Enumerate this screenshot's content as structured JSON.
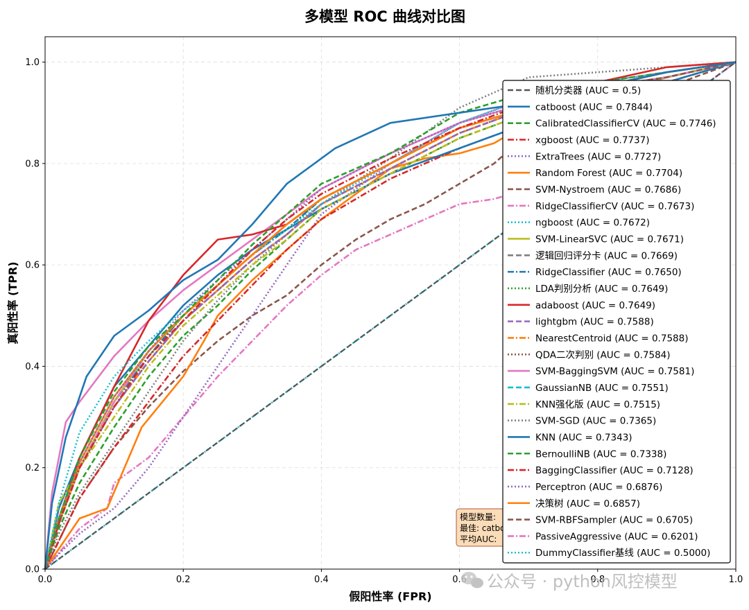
{
  "chart_data": {
    "type": "line",
    "title": "多模型 ROC 曲线对比图",
    "xlabel": "假阳性率 (FPR)",
    "ylabel": "真阳性率 (TPR)",
    "xlim": [
      0,
      1
    ],
    "ylim": [
      0,
      1.05
    ],
    "xticks": [
      "0.0",
      "0.2",
      "0.4",
      "0.6",
      "0.8",
      "1.0"
    ],
    "yticks": [
      "0.0",
      "0.2",
      "0.4",
      "0.6",
      "0.8",
      "1.0"
    ],
    "grid": true,
    "legend_position": "right",
    "series": [
      {
        "name": "随机分类器 (AUC = 0.5)",
        "color": "#555555",
        "dash": "dashed",
        "x": [
          0,
          1
        ],
        "y": [
          0,
          1
        ]
      },
      {
        "name": "catboost (AUC = 0.7844)",
        "color": "#1f77b4",
        "dash": "solid",
        "x": [
          0,
          0.01,
          0.03,
          0.06,
          0.1,
          0.15,
          0.2,
          0.25,
          0.3,
          0.35,
          0.42,
          0.5,
          0.6,
          0.7,
          0.8,
          0.9,
          1
        ],
        "y": [
          0,
          0.13,
          0.26,
          0.38,
          0.46,
          0.51,
          0.57,
          0.61,
          0.68,
          0.76,
          0.83,
          0.88,
          0.9,
          0.92,
          0.95,
          0.98,
          1
        ]
      },
      {
        "name": "CalibratedClassifierCV (AUC = 0.7746)",
        "color": "#2ca02c",
        "dash": "dashed",
        "x": [
          0,
          0.02,
          0.05,
          0.1,
          0.15,
          0.2,
          0.25,
          0.3,
          0.35,
          0.4,
          0.5,
          0.6,
          0.7,
          0.8,
          0.9,
          1
        ],
        "y": [
          0,
          0.1,
          0.22,
          0.35,
          0.44,
          0.5,
          0.57,
          0.64,
          0.7,
          0.76,
          0.82,
          0.9,
          0.94,
          0.96,
          0.98,
          1
        ]
      },
      {
        "name": "xgboost (AUC = 0.7737)",
        "color": "#d62728",
        "dash": "dashdot",
        "x": [
          0,
          0.02,
          0.05,
          0.1,
          0.15,
          0.2,
          0.25,
          0.3,
          0.35,
          0.4,
          0.5,
          0.6,
          0.7,
          0.8,
          0.9,
          1
        ],
        "y": [
          0,
          0.09,
          0.2,
          0.32,
          0.42,
          0.49,
          0.56,
          0.63,
          0.69,
          0.74,
          0.81,
          0.87,
          0.92,
          0.95,
          0.98,
          1
        ]
      },
      {
        "name": "ExtraTrees (AUC = 0.7727)",
        "color": "#9467bd",
        "dash": "dotted",
        "x": [
          0,
          0.02,
          0.05,
          0.1,
          0.15,
          0.2,
          0.25,
          0.3,
          0.35,
          0.4,
          0.5,
          0.6,
          0.7,
          0.8,
          0.9,
          1
        ],
        "y": [
          0,
          0.1,
          0.21,
          0.34,
          0.43,
          0.51,
          0.57,
          0.63,
          0.69,
          0.75,
          0.82,
          0.88,
          0.92,
          0.95,
          0.98,
          1
        ]
      },
      {
        "name": "Random Forest (AUC = 0.7704)",
        "color": "#ff7f0e",
        "dash": "solid",
        "x": [
          0,
          0.02,
          0.05,
          0.1,
          0.15,
          0.2,
          0.25,
          0.3,
          0.35,
          0.4,
          0.5,
          0.6,
          0.7,
          0.8,
          0.9,
          1
        ],
        "y": [
          0,
          0.1,
          0.21,
          0.34,
          0.43,
          0.5,
          0.56,
          0.62,
          0.68,
          0.73,
          0.8,
          0.87,
          0.91,
          0.95,
          0.98,
          1
        ]
      },
      {
        "name": "SVM-Nystroem (AUC = 0.7686)",
        "color": "#8c564b",
        "dash": "dashed",
        "x": [
          0,
          0.02,
          0.05,
          0.1,
          0.15,
          0.2,
          0.25,
          0.3,
          0.35,
          0.4,
          0.5,
          0.6,
          0.7,
          0.8,
          0.9,
          1
        ],
        "y": [
          0,
          0.09,
          0.21,
          0.34,
          0.43,
          0.5,
          0.56,
          0.62,
          0.68,
          0.73,
          0.8,
          0.87,
          0.91,
          0.95,
          0.97,
          1
        ]
      },
      {
        "name": "RidgeClassifierCV (AUC = 0.7673)",
        "color": "#e377c2",
        "dash": "dashdot",
        "x": [
          0,
          0.02,
          0.05,
          0.1,
          0.15,
          0.2,
          0.25,
          0.3,
          0.35,
          0.4,
          0.5,
          0.6,
          0.7,
          0.8,
          0.9,
          1
        ],
        "y": [
          0,
          0.09,
          0.2,
          0.33,
          0.43,
          0.5,
          0.56,
          0.62,
          0.68,
          0.73,
          0.8,
          0.87,
          0.91,
          0.95,
          0.97,
          1
        ]
      },
      {
        "name": "ngboost (AUC = 0.7672)",
        "color": "#17becf",
        "dash": "dotted",
        "x": [
          0,
          0.02,
          0.05,
          0.1,
          0.15,
          0.2,
          0.25,
          0.3,
          0.35,
          0.4,
          0.5,
          0.6,
          0.7,
          0.8,
          0.9,
          1
        ],
        "y": [
          0,
          0.13,
          0.27,
          0.38,
          0.45,
          0.51,
          0.56,
          0.62,
          0.67,
          0.72,
          0.8,
          0.88,
          0.93,
          0.96,
          0.98,
          1
        ]
      },
      {
        "name": "SVM-LinearSVC (AUC = 0.7671)",
        "color": "#bcbd22",
        "dash": "solid",
        "x": [
          0,
          0.02,
          0.05,
          0.1,
          0.15,
          0.2,
          0.25,
          0.3,
          0.35,
          0.4,
          0.5,
          0.6,
          0.7,
          0.8,
          0.9,
          1
        ],
        "y": [
          0,
          0.09,
          0.2,
          0.33,
          0.43,
          0.5,
          0.56,
          0.62,
          0.68,
          0.73,
          0.8,
          0.87,
          0.91,
          0.95,
          0.97,
          1
        ]
      },
      {
        "name": "逻辑回归评分卡 (AUC = 0.7669)",
        "color": "#7f7f7f",
        "dash": "dashed",
        "x": [
          0,
          0.02,
          0.05,
          0.1,
          0.15,
          0.2,
          0.25,
          0.3,
          0.35,
          0.4,
          0.5,
          0.6,
          0.7,
          0.8,
          0.9,
          1
        ],
        "y": [
          0,
          0.09,
          0.2,
          0.33,
          0.43,
          0.5,
          0.56,
          0.62,
          0.68,
          0.73,
          0.8,
          0.87,
          0.91,
          0.95,
          0.97,
          1
        ]
      },
      {
        "name": "RidgeClassifier (AUC = 0.7650)",
        "color": "#1f77b4",
        "dash": "dashdot",
        "x": [
          0,
          0.02,
          0.05,
          0.1,
          0.15,
          0.2,
          0.25,
          0.3,
          0.35,
          0.4,
          0.5,
          0.6,
          0.7,
          0.8,
          0.9,
          1
        ],
        "y": [
          0,
          0.09,
          0.2,
          0.33,
          0.42,
          0.5,
          0.56,
          0.62,
          0.67,
          0.73,
          0.8,
          0.87,
          0.91,
          0.95,
          0.97,
          1
        ]
      },
      {
        "name": "LDA判别分析 (AUC = 0.7649)",
        "color": "#2ca02c",
        "dash": "dotted",
        "x": [
          0,
          0.02,
          0.05,
          0.1,
          0.15,
          0.2,
          0.25,
          0.3,
          0.35,
          0.4,
          0.5,
          0.6,
          0.7,
          0.8,
          0.9,
          1
        ],
        "y": [
          0,
          0.09,
          0.2,
          0.33,
          0.42,
          0.5,
          0.56,
          0.62,
          0.67,
          0.73,
          0.8,
          0.87,
          0.91,
          0.95,
          0.97,
          1
        ]
      },
      {
        "name": "adaboost (AUC = 0.7649)",
        "color": "#d62728",
        "dash": "solid",
        "x": [
          0,
          0.02,
          0.05,
          0.1,
          0.15,
          0.2,
          0.25,
          0.3,
          0.35,
          0.4,
          0.5,
          0.6,
          0.7,
          0.8,
          0.9,
          1
        ],
        "y": [
          0,
          0.1,
          0.22,
          0.36,
          0.49,
          0.58,
          0.65,
          0.66,
          0.68,
          0.73,
          0.8,
          0.87,
          0.91,
          0.96,
          0.99,
          1
        ]
      },
      {
        "name": "lightgbm (AUC = 0.7588)",
        "color": "#9467bd",
        "dash": "dashed",
        "x": [
          0,
          0.02,
          0.05,
          0.1,
          0.15,
          0.2,
          0.25,
          0.3,
          0.35,
          0.4,
          0.5,
          0.6,
          0.7,
          0.8,
          0.9,
          1
        ],
        "y": [
          0,
          0.09,
          0.2,
          0.32,
          0.41,
          0.49,
          0.55,
          0.61,
          0.66,
          0.72,
          0.79,
          0.86,
          0.91,
          0.95,
          0.97,
          1
        ]
      },
      {
        "name": "NearestCentroid (AUC = 0.7588)",
        "color": "#ff7f0e",
        "dash": "dashdot",
        "x": [
          0,
          0.02,
          0.05,
          0.1,
          0.15,
          0.2,
          0.25,
          0.3,
          0.35,
          0.4,
          0.5,
          0.6,
          0.7,
          0.8,
          0.9,
          1
        ],
        "y": [
          0,
          0.09,
          0.2,
          0.32,
          0.41,
          0.49,
          0.55,
          0.61,
          0.66,
          0.72,
          0.79,
          0.86,
          0.91,
          0.95,
          0.97,
          1
        ]
      },
      {
        "name": "QDA二次判别 (AUC = 0.7584)",
        "color": "#8c564b",
        "dash": "dotted",
        "x": [
          0,
          0.02,
          0.05,
          0.1,
          0.15,
          0.2,
          0.25,
          0.3,
          0.35,
          0.4,
          0.5,
          0.6,
          0.7,
          0.8,
          0.9,
          1
        ],
        "y": [
          0,
          0.09,
          0.2,
          0.32,
          0.41,
          0.49,
          0.55,
          0.61,
          0.66,
          0.72,
          0.79,
          0.86,
          0.91,
          0.95,
          0.97,
          1
        ]
      },
      {
        "name": "SVM-BaggingSVM (AUC = 0.7581)",
        "color": "#e377c2",
        "dash": "solid",
        "x": [
          0,
          0.01,
          0.03,
          0.05,
          0.1,
          0.15,
          0.2,
          0.25,
          0.3,
          0.35,
          0.4,
          0.5,
          0.6,
          0.7,
          0.8,
          0.9,
          1
        ],
        "y": [
          0,
          0.15,
          0.29,
          0.33,
          0.42,
          0.49,
          0.55,
          0.6,
          0.65,
          0.7,
          0.75,
          0.82,
          0.88,
          0.92,
          0.95,
          0.98,
          1
        ]
      },
      {
        "name": "GaussianNB (AUC = 0.7551)",
        "color": "#17becf",
        "dash": "dashed",
        "x": [
          0,
          0.02,
          0.05,
          0.1,
          0.15,
          0.2,
          0.25,
          0.3,
          0.35,
          0.4,
          0.5,
          0.6,
          0.7,
          0.8,
          0.9,
          1
        ],
        "y": [
          0,
          0.09,
          0.2,
          0.32,
          0.41,
          0.49,
          0.55,
          0.61,
          0.66,
          0.72,
          0.79,
          0.86,
          0.91,
          0.95,
          0.97,
          1
        ]
      },
      {
        "name": "KNN强化版 (AUC = 0.7515)",
        "color": "#bcbd22",
        "dash": "dashdot",
        "x": [
          0,
          0.02,
          0.05,
          0.1,
          0.15,
          0.2,
          0.25,
          0.3,
          0.35,
          0.4,
          0.5,
          0.6,
          0.7,
          0.8,
          0.9,
          1
        ],
        "y": [
          0,
          0.13,
          0.2,
          0.3,
          0.4,
          0.48,
          0.54,
          0.6,
          0.65,
          0.71,
          0.78,
          0.85,
          0.9,
          0.94,
          0.97,
          1
        ]
      },
      {
        "name": "SVM-SGD (AUC = 0.7365)",
        "color": "#7f7f7f",
        "dash": "dotted",
        "x": [
          0,
          0.02,
          0.05,
          0.1,
          0.15,
          0.2,
          0.25,
          0.3,
          0.35,
          0.4,
          0.5,
          0.6,
          0.7,
          0.8,
          0.9,
          1
        ],
        "y": [
          0,
          0.07,
          0.15,
          0.25,
          0.35,
          0.45,
          0.53,
          0.6,
          0.66,
          0.72,
          0.81,
          0.91,
          0.97,
          0.98,
          0.99,
          1
        ]
      },
      {
        "name": "KNN (AUC = 0.7343)",
        "color": "#1f77b4",
        "dash": "solid",
        "x": [
          0,
          0.02,
          0.05,
          0.1,
          0.15,
          0.2,
          0.25,
          0.3,
          0.35,
          0.4,
          0.5,
          0.6,
          0.7,
          0.8,
          0.9,
          1
        ],
        "y": [
          0,
          0.12,
          0.22,
          0.36,
          0.44,
          0.52,
          0.58,
          0.63,
          0.67,
          0.71,
          0.78,
          0.83,
          0.88,
          0.92,
          0.96,
          1
        ]
      },
      {
        "name": "BernoulliNB (AUC = 0.7338)",
        "color": "#2ca02c",
        "dash": "dashed",
        "x": [
          0,
          0.02,
          0.05,
          0.1,
          0.15,
          0.2,
          0.25,
          0.3,
          0.35,
          0.4,
          0.5,
          0.6,
          0.7,
          0.8,
          0.9,
          1
        ],
        "y": [
          0,
          0.08,
          0.17,
          0.28,
          0.38,
          0.46,
          0.52,
          0.59,
          0.65,
          0.71,
          0.78,
          0.85,
          0.9,
          0.94,
          0.97,
          1
        ]
      },
      {
        "name": "BaggingClassifier (AUC = 0.7128)",
        "color": "#d62728",
        "dash": "dashdot",
        "x": [
          0,
          0.05,
          0.1,
          0.15,
          0.2,
          0.25,
          0.3,
          0.35,
          0.4,
          0.5,
          0.6,
          0.7,
          0.8,
          0.9,
          1
        ],
        "y": [
          0,
          0.14,
          0.24,
          0.33,
          0.42,
          0.49,
          0.56,
          0.63,
          0.69,
          0.77,
          0.83,
          0.88,
          0.93,
          0.96,
          1
        ]
      },
      {
        "name": "Perceptron (AUC = 0.6876)",
        "color": "#9467bd",
        "dash": "dotted",
        "x": [
          0,
          0.02,
          0.05,
          0.1,
          0.15,
          0.2,
          0.25,
          0.3,
          0.35,
          0.4,
          0.5,
          0.6,
          0.7,
          0.8,
          0.9,
          1
        ],
        "y": [
          0,
          0.03,
          0.07,
          0.12,
          0.2,
          0.3,
          0.4,
          0.5,
          0.6,
          0.7,
          0.8,
          0.88,
          0.93,
          0.96,
          0.98,
          1
        ]
      },
      {
        "name": "决策树 (AUC = 0.6857)",
        "color": "#ff7f0e",
        "dash": "solid",
        "x": [
          0,
          0.05,
          0.09,
          0.14,
          0.2,
          0.23,
          0.25,
          0.3,
          0.35,
          0.4,
          0.45,
          0.5,
          0.55,
          0.6,
          0.65,
          0.7,
          0.8,
          0.9,
          1
        ],
        "y": [
          0,
          0.1,
          0.12,
          0.28,
          0.38,
          0.45,
          0.5,
          0.57,
          0.63,
          0.69,
          0.74,
          0.79,
          0.81,
          0.82,
          0.84,
          0.88,
          0.93,
          0.97,
          1
        ]
      },
      {
        "name": "SVM-RBFSampler (AUC = 0.6705)",
        "color": "#8c564b",
        "dash": "dashed",
        "x": [
          0,
          0.05,
          0.1,
          0.15,
          0.2,
          0.25,
          0.3,
          0.35,
          0.4,
          0.45,
          0.5,
          0.55,
          0.6,
          0.65,
          0.7,
          0.8,
          0.9,
          1
        ],
        "y": [
          0,
          0.14,
          0.24,
          0.32,
          0.39,
          0.45,
          0.5,
          0.54,
          0.6,
          0.65,
          0.69,
          0.72,
          0.76,
          0.8,
          0.86,
          0.9,
          0.95,
          1
        ]
      },
      {
        "name": "PassiveAggressive (AUC = 0.6201)",
        "color": "#e377c2",
        "dash": "dashdot",
        "x": [
          0,
          0.05,
          0.09,
          0.1,
          0.15,
          0.2,
          0.25,
          0.3,
          0.35,
          0.4,
          0.45,
          0.5,
          0.55,
          0.6,
          0.65,
          0.7,
          0.8,
          0.9,
          1
        ],
        "y": [
          0,
          0.08,
          0.12,
          0.17,
          0.22,
          0.3,
          0.38,
          0.45,
          0.52,
          0.58,
          0.63,
          0.66,
          0.69,
          0.72,
          0.73,
          0.75,
          0.77,
          0.9,
          1
        ]
      },
      {
        "name": "DummyClassifier基线 (AUC = 0.5000)",
        "color": "#17becf",
        "dash": "dotted",
        "x": [
          0,
          1
        ],
        "y": [
          0,
          1
        ]
      }
    ]
  },
  "info_box": {
    "line1": "模型数量:",
    "line2": "最佳: catboost",
    "line3": "平均AUC:"
  },
  "watermark": "公众号 · python风控模型"
}
